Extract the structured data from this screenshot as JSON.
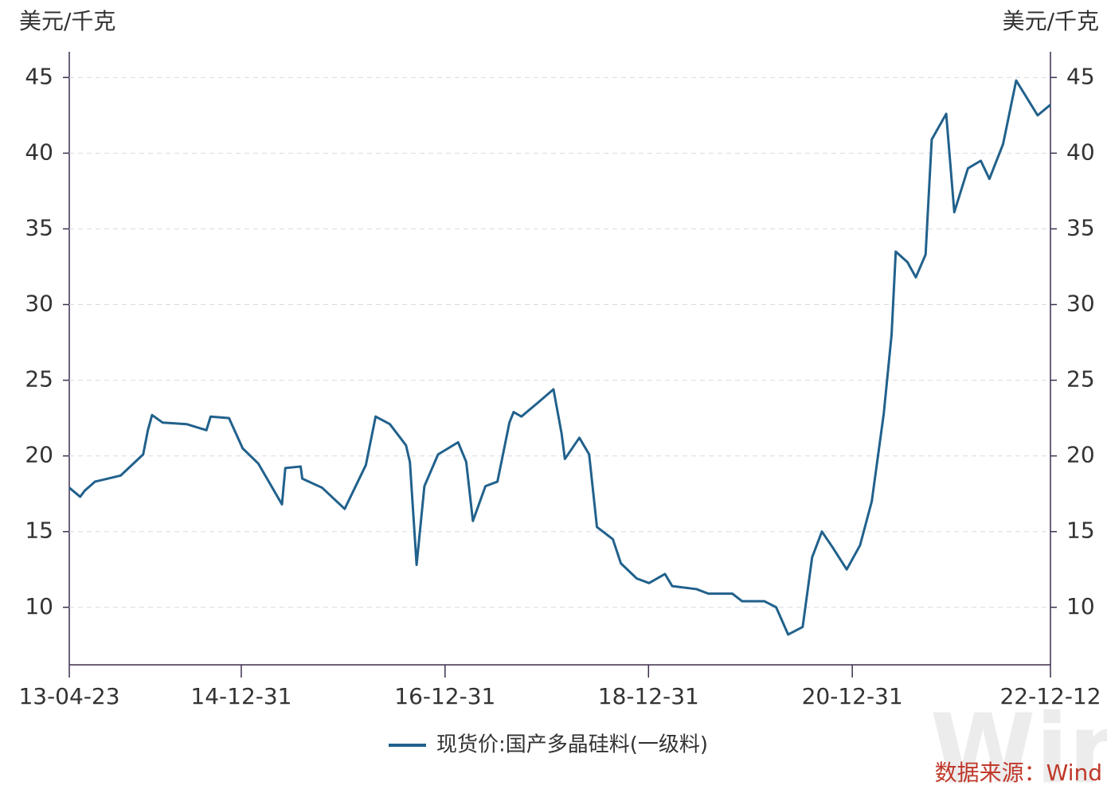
{
  "chart_data": {
    "type": "line",
    "y_label": "美元/千克",
    "y2_label": "美元/千克",
    "x": [
      "13-04-23",
      "13-06-01",
      "13-06-17",
      "13-07-24",
      "13-10-24",
      "14-01-13",
      "14-01-30",
      "14-02-14",
      "14-03-24",
      "14-06-18",
      "14-08-28",
      "14-09-12",
      "14-11-17",
      "15-01-05",
      "15-03-02",
      "15-05-26",
      "15-06-07",
      "15-08-01",
      "15-08-07",
      "15-10-17",
      "16-01-06",
      "16-03-22",
      "16-04-26",
      "16-06-16",
      "16-08-13",
      "16-08-27",
      "16-09-20",
      "16-10-18",
      "16-12-06",
      "17-02-16",
      "17-03-17",
      "17-04-10",
      "17-05-25",
      "17-07-07",
      "17-08-19",
      "17-09-03",
      "17-10-01",
      "17-11-28",
      "18-01-24",
      "18-02-22",
      "18-03-06",
      "18-04-27",
      "18-06-01",
      "18-06-29",
      "18-08-25",
      "18-09-23",
      "18-11-19",
      "19-01-02",
      "19-02-28",
      "19-03-26",
      "19-06-21",
      "19-08-03",
      "19-10-28",
      "19-12-02",
      "20-02-20",
      "20-04-02",
      "20-05-15",
      "20-07-06",
      "20-08-09",
      "20-09-13",
      "20-10-20",
      "20-12-11",
      "21-01-28",
      "21-03-11",
      "21-04-23",
      "21-05-21",
      "21-06-05",
      "21-07-17",
      "21-08-16",
      "21-09-20",
      "21-10-12",
      "21-12-03",
      "22-01-01",
      "22-02-19",
      "22-04-06",
      "22-05-07",
      "22-06-25",
      "22-08-11",
      "22-10-27",
      "22-12-12"
    ],
    "series": [
      {
        "name": "现货价:国产多晶硅料(一级料)",
        "color": "#21618c",
        "values": [
          17.9,
          17.3,
          17.7,
          18.3,
          18.7,
          20.1,
          21.7,
          22.7,
          22.2,
          22.1,
          21.7,
          22.6,
          22.5,
          20.5,
          19.5,
          16.8,
          19.2,
          19.3,
          18.5,
          17.9,
          16.5,
          19.4,
          22.6,
          22.1,
          20.7,
          19.6,
          12.8,
          18.0,
          20.1,
          20.9,
          19.6,
          15.7,
          18.0,
          18.3,
          22.2,
          22.9,
          22.6,
          23.5,
          24.4,
          21.5,
          19.8,
          21.2,
          20.1,
          15.3,
          14.5,
          12.9,
          11.9,
          11.6,
          12.2,
          11.4,
          11.2,
          10.9,
          10.9,
          10.4,
          10.4,
          10.0,
          8.2,
          8.7,
          13.3,
          15.0,
          14.0,
          12.5,
          14.1,
          17.0,
          22.8,
          28.0,
          33.5,
          32.8,
          31.8,
          33.3,
          40.9,
          42.6,
          36.1,
          39.0,
          39.5,
          38.3,
          40.6,
          44.8,
          42.5,
          43.2
        ]
      }
    ],
    "xlim": [
      "13-04-23",
      "22-12-12"
    ],
    "xticks": [
      "13-04-23",
      "14-12-31",
      "16-12-31",
      "18-12-31",
      "20-12-31",
      "22-12-12"
    ],
    "ylim": [
      6.2,
      46.7
    ],
    "yticks": [
      10,
      15,
      20,
      25,
      30,
      35,
      40,
      45
    ],
    "y2lim": [
      6.2,
      46.7
    ],
    "y2ticks": [
      10,
      15,
      20,
      25,
      30,
      35,
      40,
      45
    ],
    "grid": true,
    "source": "数据来源：Wind",
    "watermark": "Wind"
  }
}
